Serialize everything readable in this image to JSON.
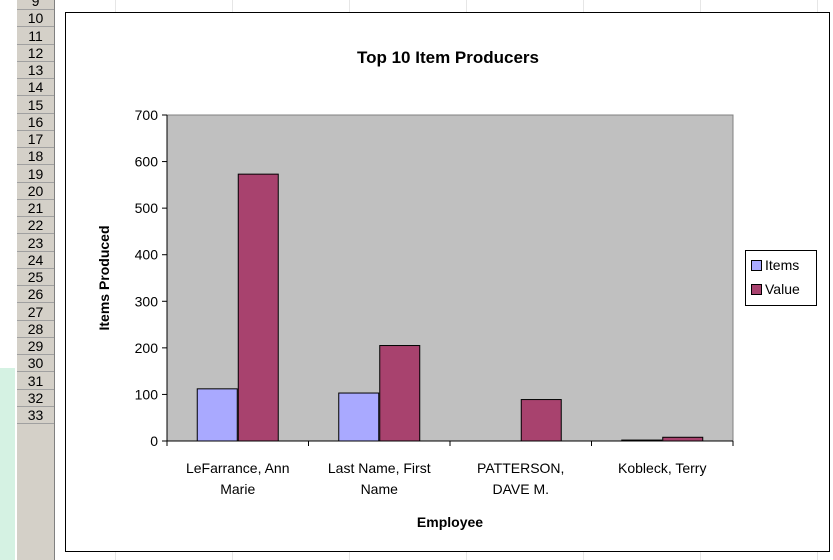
{
  "row_headers": [
    "9",
    "10",
    "11",
    "12",
    "13",
    "14",
    "15",
    "16",
    "17",
    "18",
    "19",
    "20",
    "21",
    "22",
    "23",
    "24",
    "25",
    "26",
    "27",
    "28",
    "29",
    "30",
    "31",
    "32",
    "33"
  ],
  "chart_data": {
    "type": "bar",
    "title": "Top 10 Item Producers",
    "xlabel": "Employee",
    "ylabel": "Items Produced",
    "categories": [
      [
        "LeFarrance, Ann",
        "Marie"
      ],
      [
        "Last Name, First",
        "Name"
      ],
      [
        "PATTERSON,",
        "DAVE M."
      ],
      [
        "Kobleck, Terry"
      ]
    ],
    "series": [
      {
        "name": "Items",
        "color": "#a9a9ff",
        "values": [
          112,
          103,
          0,
          2
        ]
      },
      {
        "name": "Value",
        "color": "#a8426e",
        "values": [
          573,
          205,
          89,
          8
        ]
      }
    ],
    "ylim": [
      0,
      700
    ],
    "yticks": [
      0,
      100,
      200,
      300,
      400,
      500,
      600,
      700
    ],
    "plot_background": "#c0c0c0",
    "grid": false,
    "legend": "right"
  }
}
